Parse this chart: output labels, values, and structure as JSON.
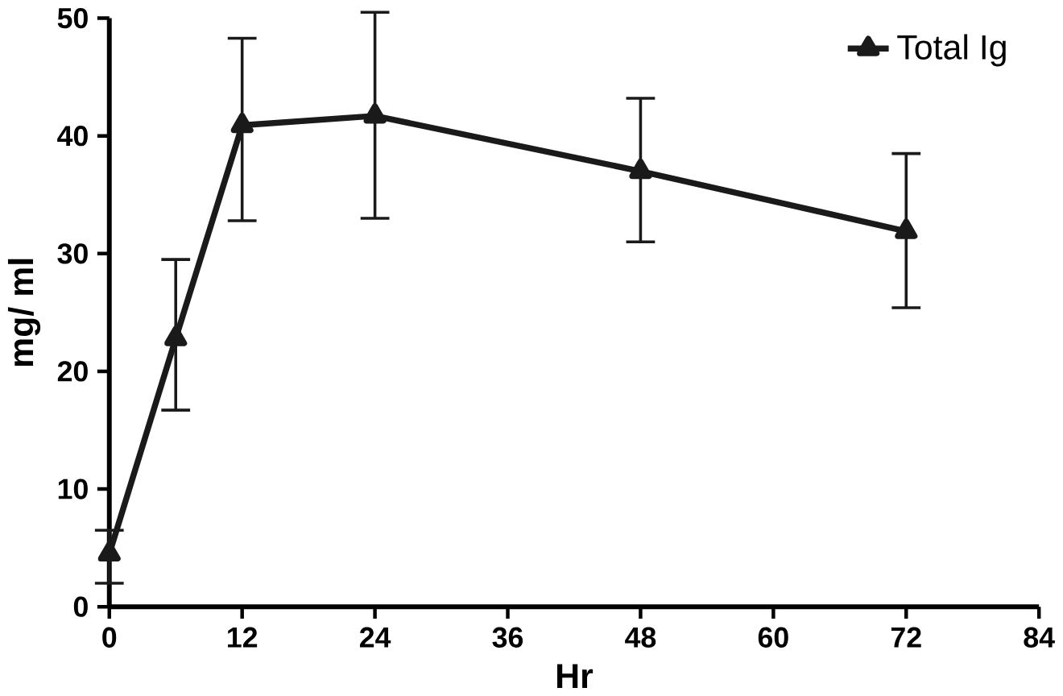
{
  "chart_data": {
    "type": "line",
    "xlabel": "Hr",
    "ylabel": "mg/ ml",
    "x": [
      0,
      6,
      12,
      24,
      48,
      72
    ],
    "series": [
      {
        "name": "Total Ig",
        "color": "#1a1a1a",
        "values": [
          4.5,
          22.8,
          40.9,
          41.7,
          37,
          31.9
        ],
        "errors": [
          [
            2,
            6.5
          ],
          [
            16.7,
            29.5
          ],
          [
            32.8,
            48.3
          ],
          [
            33,
            50.5
          ],
          [
            31,
            43.2
          ],
          [
            25.4,
            38.5
          ]
        ]
      }
    ],
    "xlim": [
      0,
      84
    ],
    "xticks": [
      0,
      12,
      24,
      36,
      48,
      60,
      72,
      84
    ],
    "ylim": [
      0,
      50
    ],
    "yticks": [
      0,
      10,
      20,
      30,
      40,
      50
    ],
    "marker": "triangle",
    "line_style": "solid",
    "legend": "top right",
    "grid": false
  }
}
